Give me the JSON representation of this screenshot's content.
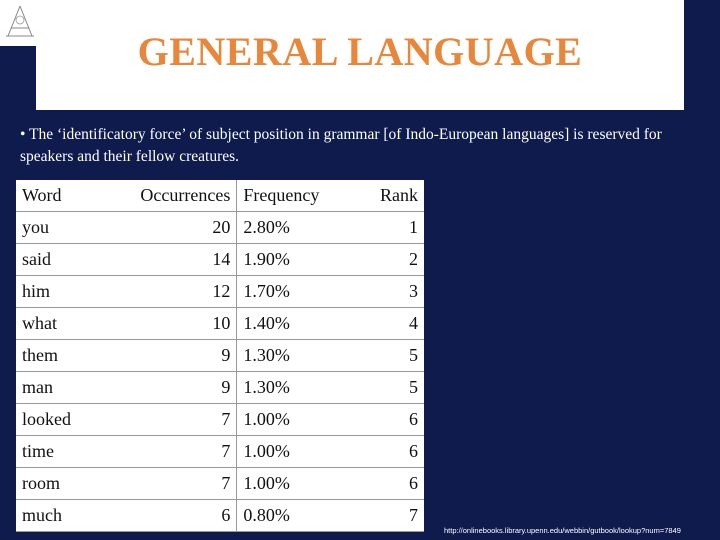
{
  "header": {
    "title": "GENERAL LANGUAGE"
  },
  "bullet": "• The ‘identificatory force’ of subject position in grammar [of Indo-European languages] is reserved for speakers and their fellow creatures.",
  "table": {
    "columns": [
      "Word",
      "Occurrences",
      "Frequency",
      "Rank"
    ],
    "rows": [
      [
        "you",
        20,
        "2.80%",
        1
      ],
      [
        "said",
        14,
        "1.90%",
        2
      ],
      [
        "him",
        12,
        "1.70%",
        3
      ],
      [
        "what",
        10,
        "1.40%",
        4
      ],
      [
        "them",
        9,
        "1.30%",
        5
      ],
      [
        "man",
        9,
        "1.30%",
        5
      ],
      [
        "looked",
        7,
        "1.00%",
        6
      ],
      [
        "time",
        7,
        "1.00%",
        6
      ],
      [
        "room",
        7,
        "1.00%",
        6
      ],
      [
        "much",
        6,
        "0.80%",
        7
      ]
    ]
  },
  "source": "http://onlinebooks.library.upenn.edu/webbin/gutbook/lookup?num=7849"
}
